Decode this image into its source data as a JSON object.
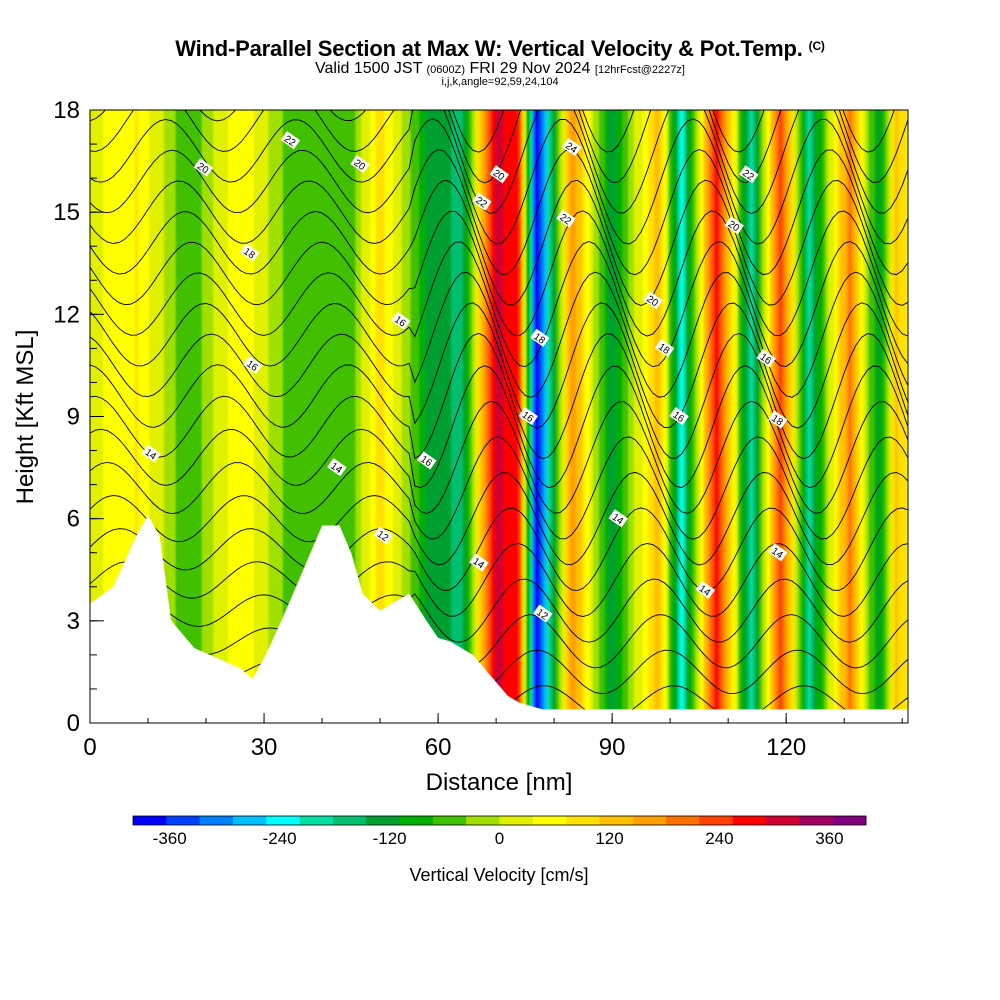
{
  "header": {
    "title": "Wind-Parallel Section at Max W: Vertical Velocity & Pot.Temp.",
    "copyright": "(C)",
    "valid_prefix": "Valid 1500 JST",
    "valid_utc": "(0600Z)",
    "valid_date": "FRI 29 Nov 2024",
    "forecast": "[12hrFcst@2227z]",
    "params": "i,j,k,angle=92,59,24,104"
  },
  "chart_data": {
    "type": "heatmap",
    "xlabel": "Distance [nm]",
    "ylabel": "Height [Kft MSL]",
    "xlim": [
      0,
      141
    ],
    "ylim": [
      0,
      18
    ],
    "x_ticks": [
      0,
      30,
      60,
      90,
      120
    ],
    "y_ticks": [
      0,
      3,
      6,
      9,
      12,
      15,
      18
    ],
    "grid": false,
    "colorbar": {
      "label": "Vertical Velocity [cm/s]",
      "ticks": [
        -360,
        -240,
        -120,
        0,
        120,
        240,
        360
      ],
      "min": -400,
      "max": 400,
      "colors": [
        "#0000ff",
        "#0040ff",
        "#0080ff",
        "#00c0ff",
        "#00ffff",
        "#00e0a0",
        "#00c070",
        "#00a030",
        "#00b000",
        "#40c000",
        "#a0e000",
        "#e0f000",
        "#ffff00",
        "#ffe000",
        "#ffc000",
        "#ffa000",
        "#ff7000",
        "#ff4000",
        "#ff0000",
        "#d00030",
        "#a00060",
        "#800080"
      ]
    },
    "terrain_kft": [
      [
        0,
        3.5
      ],
      [
        4,
        4.0
      ],
      [
        8,
        5.5
      ],
      [
        10,
        6.1
      ],
      [
        12,
        5.5
      ],
      [
        14,
        3.0
      ],
      [
        18,
        2.2
      ],
      [
        22,
        1.9
      ],
      [
        26,
        1.6
      ],
      [
        28,
        1.3
      ],
      [
        30,
        1.9
      ],
      [
        33,
        3.0
      ],
      [
        36,
        4.2
      ],
      [
        40,
        5.8
      ],
      [
        43,
        5.8
      ],
      [
        45,
        5.0
      ],
      [
        47,
        3.8
      ],
      [
        50,
        3.3
      ],
      [
        52,
        3.5
      ],
      [
        55,
        3.8
      ],
      [
        58,
        3.0
      ],
      [
        60,
        2.5
      ],
      [
        62,
        2.4
      ],
      [
        66,
        2.0
      ],
      [
        68,
        1.6
      ],
      [
        70,
        1.2
      ],
      [
        72,
        0.8
      ],
      [
        74,
        0.6
      ],
      [
        78,
        0.4
      ],
      [
        141,
        0.4
      ]
    ],
    "updraft_bands": [
      {
        "x": 8,
        "w": 75
      },
      {
        "x": 26,
        "w": 70
      },
      {
        "x": 50,
        "w": 90
      },
      {
        "x": 70,
        "w": 310
      },
      {
        "x": 74,
        "w": 250
      },
      {
        "x": 83,
        "w": 180
      },
      {
        "x": 98,
        "w": 140
      },
      {
        "x": 108,
        "w": 280
      },
      {
        "x": 119,
        "w": 250
      },
      {
        "x": 131,
        "w": 200
      },
      {
        "x": 139,
        "w": 120
      }
    ],
    "downdraft_bands": [
      {
        "x": 17,
        "w": -70
      },
      {
        "x": 35,
        "w": -60
      },
      {
        "x": 45,
        "w": -55
      },
      {
        "x": 58,
        "w": -110
      },
      {
        "x": 64,
        "w": -160
      },
      {
        "x": 77,
        "w": -400
      },
      {
        "x": 80,
        "w": -120
      },
      {
        "x": 90,
        "w": -140
      },
      {
        "x": 102,
        "w": -230
      },
      {
        "x": 114,
        "w": -200
      },
      {
        "x": 124,
        "w": -190
      },
      {
        "x": 136,
        "w": -140
      }
    ],
    "theta_contour_labels": [
      {
        "x": 10.5,
        "y": 7.9,
        "text": "14"
      },
      {
        "x": 42.5,
        "y": 7.5,
        "text": "14"
      },
      {
        "x": 67,
        "y": 4.7,
        "text": "14"
      },
      {
        "x": 91,
        "y": 6.0,
        "text": "14"
      },
      {
        "x": 106,
        "y": 3.9,
        "text": "14"
      },
      {
        "x": 118.5,
        "y": 5.0,
        "text": "14"
      },
      {
        "x": 50.5,
        "y": 5.5,
        "text": "12"
      },
      {
        "x": 78,
        "y": 3.2,
        "text": "12"
      },
      {
        "x": 28,
        "y": 10.5,
        "text": "16"
      },
      {
        "x": 58,
        "y": 7.7,
        "text": "16"
      },
      {
        "x": 75.5,
        "y": 9.0,
        "text": "16"
      },
      {
        "x": 101.5,
        "y": 9.0,
        "text": "16"
      },
      {
        "x": 116.5,
        "y": 10.7,
        "text": "16"
      },
      {
        "x": 53.5,
        "y": 11.8,
        "text": "16"
      },
      {
        "x": 27.5,
        "y": 13.8,
        "text": "18"
      },
      {
        "x": 77.5,
        "y": 11.3,
        "text": "18"
      },
      {
        "x": 99,
        "y": 11.0,
        "text": "18"
      },
      {
        "x": 118.5,
        "y": 8.9,
        "text": "18"
      },
      {
        "x": 19.5,
        "y": 16.3,
        "text": "20"
      },
      {
        "x": 46.5,
        "y": 16.4,
        "text": "20"
      },
      {
        "x": 70.5,
        "y": 16.1,
        "text": "20"
      },
      {
        "x": 97,
        "y": 12.4,
        "text": "20"
      },
      {
        "x": 111,
        "y": 14.6,
        "text": "20"
      },
      {
        "x": 34.5,
        "y": 17.1,
        "text": "22"
      },
      {
        "x": 67.5,
        "y": 15.3,
        "text": "22"
      },
      {
        "x": 82,
        "y": 14.8,
        "text": "22"
      },
      {
        "x": 113.5,
        "y": 16.1,
        "text": "22"
      },
      {
        "x": 83,
        "y": 16.9,
        "text": "24"
      }
    ]
  }
}
